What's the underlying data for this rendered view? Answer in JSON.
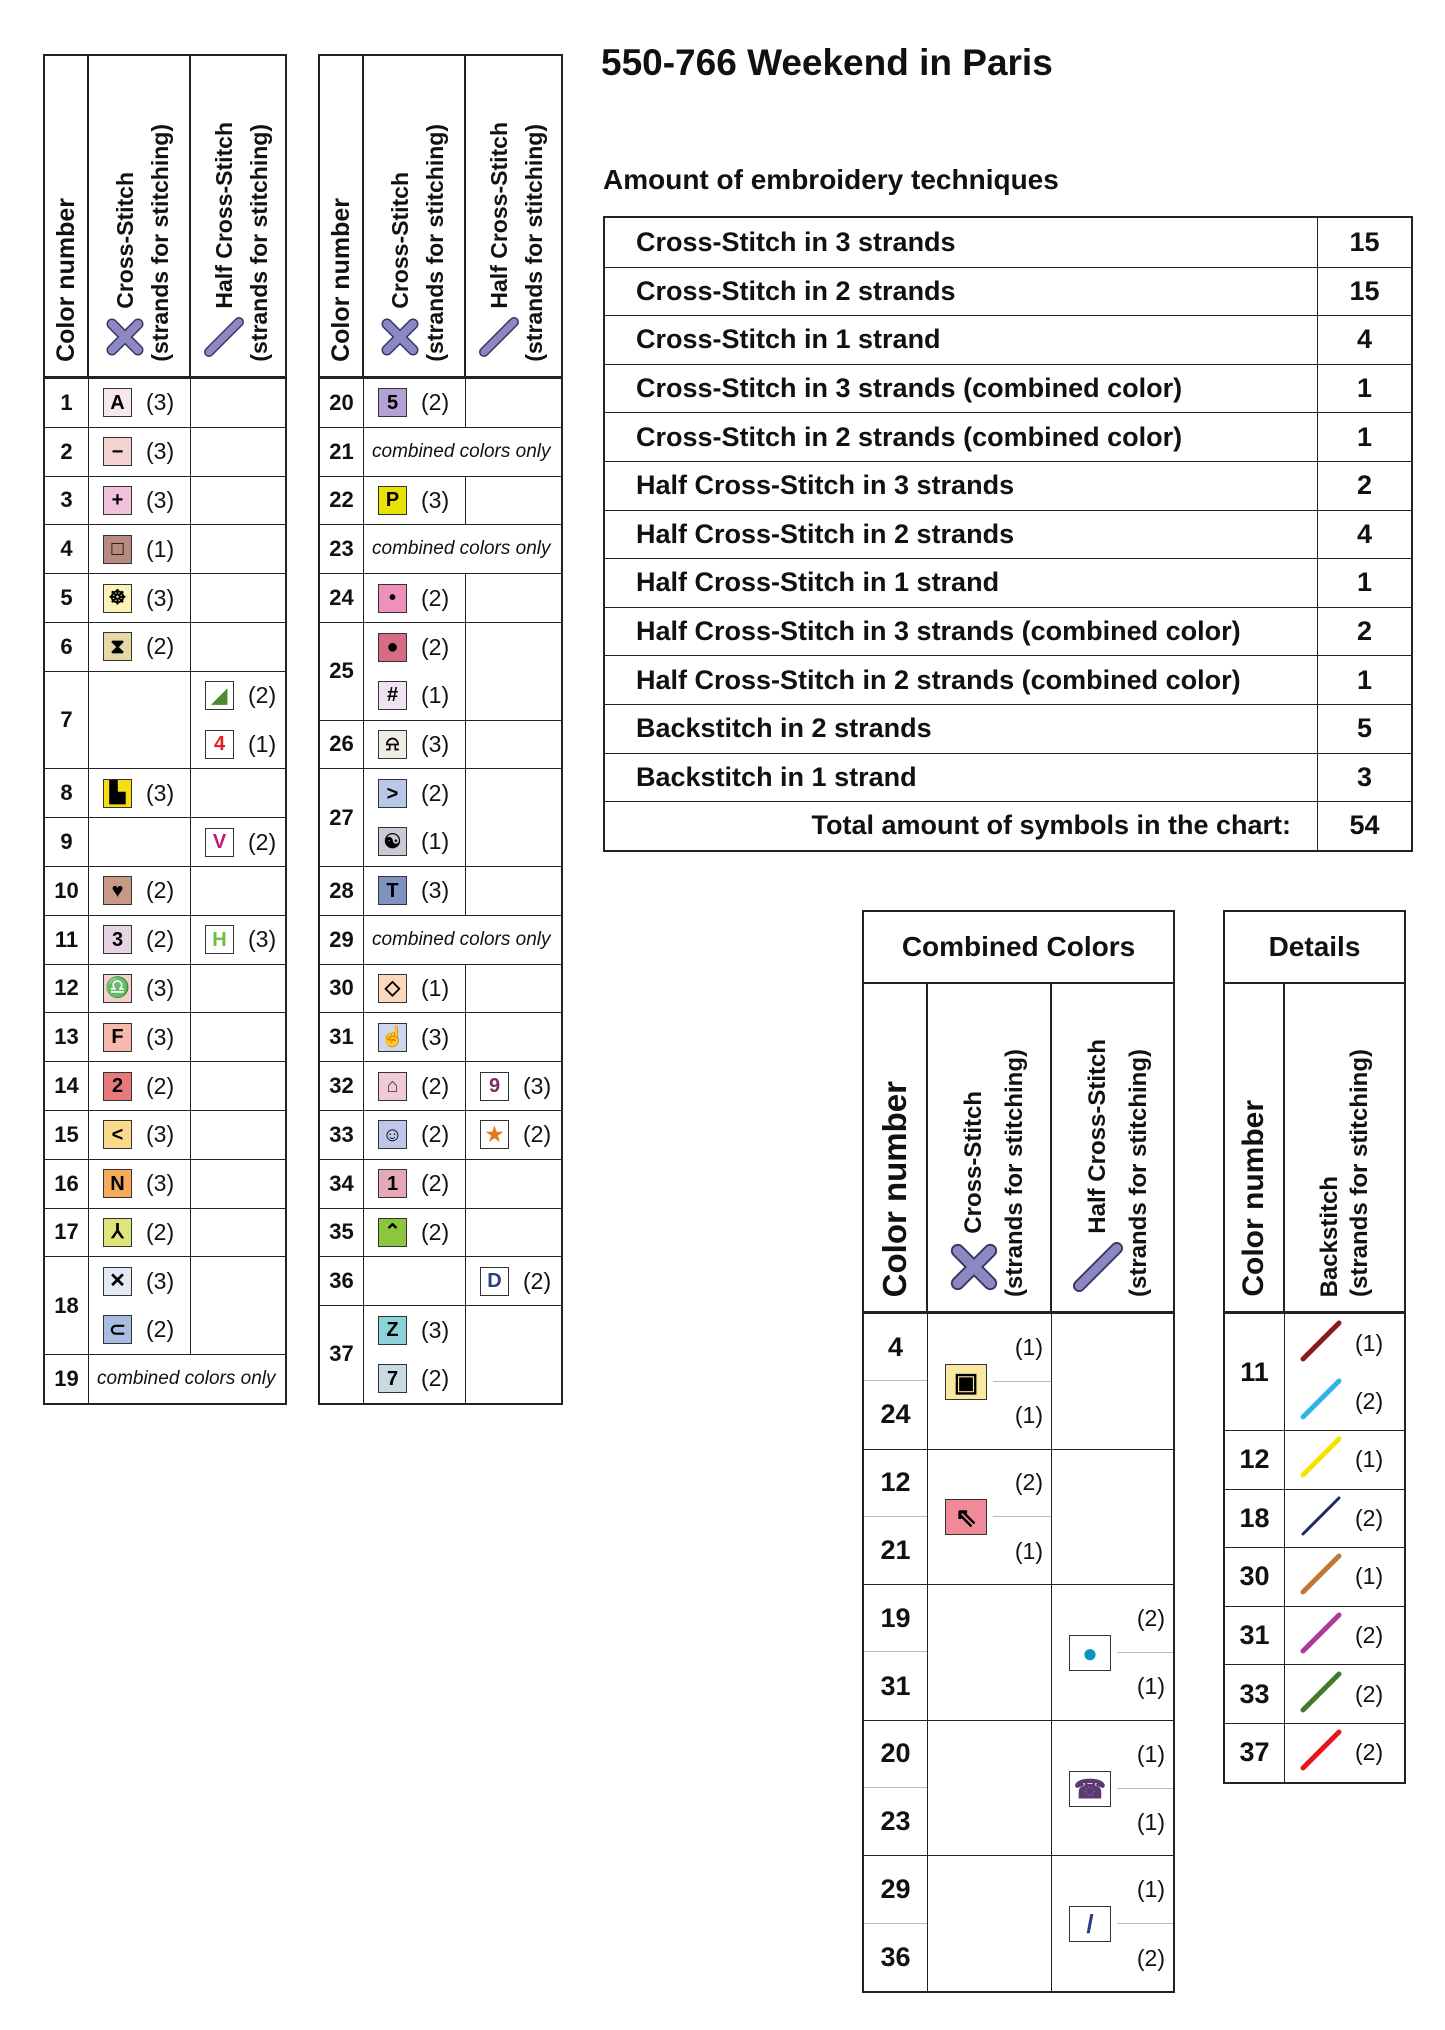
{
  "title": "550-766 Weekend in Paris",
  "amount": {
    "heading": "Amount of embroidery techniques",
    "rows": [
      {
        "label": "Cross-Stitch in 3 strands",
        "value": "15"
      },
      {
        "label": "Cross-Stitch in 2 strands",
        "value": "15"
      },
      {
        "label": "Cross-Stitch in 1 strand",
        "value": "4"
      },
      {
        "label": "Cross-Stitch in 3 strands (combined color)",
        "value": "1"
      },
      {
        "label": "Cross-Stitch in 2 strands (combined color)",
        "value": "1"
      },
      {
        "label": "Half Cross-Stitch in 3 strands",
        "value": "2"
      },
      {
        "label": "Half Cross-Stitch in 2 strands",
        "value": "4"
      },
      {
        "label": "Half Cross-Stitch in 1 strand",
        "value": "1"
      },
      {
        "label": "Half Cross-Stitch in 3 strands (combined color)",
        "value": "2"
      },
      {
        "label": "Half Cross-Stitch in 2 strands (combined color)",
        "value": "1"
      },
      {
        "label": "Backstitch in 2 strands",
        "value": "5"
      },
      {
        "label": "Backstitch in 1 strand",
        "value": "3"
      }
    ],
    "total": {
      "label": "Total amount of symbols in the chart:",
      "value": "54"
    }
  },
  "headers": {
    "color_number": "Color number",
    "cross_stitch": "Cross-Stitch",
    "half_cross_stitch": "Half Cross-Stitch",
    "backstitch": "Backstitch",
    "strands": "(strands for stitching)",
    "stitch_icon_color": "#8d87c4"
  },
  "key_tables": [
    [
      {
        "num": "1",
        "cross": [
          {
            "sym": "A",
            "bg": "#f7e8ef",
            "fg": "#000",
            "strands": "(3)"
          }
        ],
        "half": []
      },
      {
        "num": "2",
        "cross": [
          {
            "sym": "−",
            "bg": "#f2d3d0",
            "fg": "#000",
            "strands": "(3)"
          }
        ],
        "half": []
      },
      {
        "num": "3",
        "cross": [
          {
            "sym": "+",
            "bg": "#f2c2dc",
            "fg": "#000",
            "strands": "(3)"
          }
        ],
        "half": []
      },
      {
        "num": "4",
        "cross": [
          {
            "sym": "□",
            "bg": "#b88a80",
            "fg": "#000",
            "strands": "(1)"
          }
        ],
        "half": []
      },
      {
        "num": "5",
        "cross": [
          {
            "sym": "☸",
            "bg": "#fbf3b8",
            "fg": "#000",
            "strands": "(3)"
          }
        ],
        "half": []
      },
      {
        "num": "6",
        "cross": [
          {
            "sym": "⧗",
            "bg": "#e6d9a6",
            "fg": "#000",
            "strands": "(2)"
          }
        ],
        "half": []
      },
      {
        "num": "7",
        "cross": [],
        "half": [
          {
            "sym": "◢",
            "bg": "#ffffff",
            "fg": "#4b8a2e",
            "strands": "(2)"
          },
          {
            "sym": "4",
            "bg": "#ffffff",
            "fg": "#e02020",
            "strands": "(1)"
          }
        ]
      },
      {
        "num": "8",
        "cross": [
          {
            "sym": "▙",
            "bg": "#f6dc10",
            "fg": "#000",
            "strands": "(3)"
          }
        ],
        "half": []
      },
      {
        "num": "9",
        "cross": [],
        "half": [
          {
            "sym": "V",
            "bg": "#ffffff",
            "fg": "#c0187f",
            "strands": "(2)"
          }
        ]
      },
      {
        "num": "10",
        "cross": [
          {
            "sym": "♥",
            "bg": "#c79a88",
            "fg": "#000",
            "strands": "(2)"
          }
        ],
        "half": []
      },
      {
        "num": "11",
        "cross": [
          {
            "sym": "3",
            "bg": "#e6d3e3",
            "fg": "#000",
            "strands": "(2)"
          }
        ],
        "half": [
          {
            "sym": "H",
            "bg": "#ffffff",
            "fg": "#6bbf3a",
            "strands": "(3)"
          }
        ]
      },
      {
        "num": "12",
        "cross": [
          {
            "sym": "♎",
            "bg": "#f6cfcc",
            "fg": "#000",
            "strands": "(3)"
          }
        ],
        "half": []
      },
      {
        "num": "13",
        "cross": [
          {
            "sym": "F",
            "bg": "#f5b9ad",
            "fg": "#000",
            "strands": "(3)"
          }
        ],
        "half": []
      },
      {
        "num": "14",
        "cross": [
          {
            "sym": "2",
            "bg": "#e67a7a",
            "fg": "#000",
            "strands": "(2)"
          }
        ],
        "half": []
      },
      {
        "num": "15",
        "cross": [
          {
            "sym": "<",
            "bg": "#fbd98c",
            "fg": "#000",
            "strands": "(3)"
          }
        ],
        "half": []
      },
      {
        "num": "16",
        "cross": [
          {
            "sym": "N",
            "bg": "#f6aa5a",
            "fg": "#000",
            "strands": "(3)"
          }
        ],
        "half": []
      },
      {
        "num": "17",
        "cross": [
          {
            "sym": "⅄",
            "bg": "#dfe57a",
            "fg": "#000",
            "strands": "(2)"
          }
        ],
        "half": []
      },
      {
        "num": "18",
        "cross": [
          {
            "sym": "✕",
            "bg": "#e3e9f5",
            "fg": "#000",
            "strands": "(3)"
          },
          {
            "sym": "⊂",
            "bg": "#a9bde0",
            "fg": "#000",
            "strands": "(2)"
          }
        ],
        "half": []
      },
      {
        "num": "19",
        "note": "combined colors only"
      }
    ],
    [
      {
        "num": "20",
        "cross": [
          {
            "sym": "5",
            "bg": "#b3a0d4",
            "fg": "#000",
            "strands": "(2)"
          }
        ],
        "half": []
      },
      {
        "num": "21",
        "note": "combined colors only"
      },
      {
        "num": "22",
        "cross": [
          {
            "sym": "P",
            "bg": "#e9e200",
            "fg": "#000",
            "strands": "(3)"
          }
        ],
        "half": []
      },
      {
        "num": "23",
        "note": "combined colors only"
      },
      {
        "num": "24",
        "cross": [
          {
            "sym": "•",
            "bg": "#ee8fbd",
            "fg": "#000",
            "strands": "(2)"
          }
        ],
        "half": []
      },
      {
        "num": "25",
        "cross": [
          {
            "sym": "●",
            "bg": "#d66d82",
            "fg": "#000",
            "strands": "(2)"
          },
          {
            "sym": "#",
            "bg": "#efe3f2",
            "fg": "#000",
            "strands": "(1)"
          }
        ],
        "half": []
      },
      {
        "num": "26",
        "cross": [
          {
            "sym": "⍾",
            "bg": "#f0ebe5",
            "fg": "#000",
            "strands": "(3)"
          }
        ],
        "half": []
      },
      {
        "num": "27",
        "cross": [
          {
            "sym": ">",
            "bg": "#b9c8e6",
            "fg": "#000",
            "strands": "(2)"
          },
          {
            "sym": "☯",
            "bg": "#c9cad8",
            "fg": "#000",
            "strands": "(1)"
          }
        ],
        "half": []
      },
      {
        "num": "28",
        "cross": [
          {
            "sym": "T",
            "bg": "#7f92c0",
            "fg": "#000",
            "strands": "(3)"
          }
        ],
        "half": []
      },
      {
        "num": "29",
        "note": "combined colors only"
      },
      {
        "num": "30",
        "cross": [
          {
            "sym": "◇",
            "bg": "#fbd9bd",
            "fg": "#000",
            "strands": "(1)"
          }
        ],
        "half": []
      },
      {
        "num": "31",
        "cross": [
          {
            "sym": "☝",
            "bg": "#cfd6ef",
            "fg": "#333",
            "strands": "(3)"
          }
        ],
        "half": []
      },
      {
        "num": "32",
        "cross": [
          {
            "sym": "⌂",
            "bg": "#f0cbd5",
            "fg": "#333",
            "strands": "(2)"
          }
        ],
        "half": [
          {
            "sym": "9",
            "bg": "#ffffff",
            "fg": "#7a2a66",
            "strands": "(3)"
          }
        ]
      },
      {
        "num": "33",
        "cross": [
          {
            "sym": "☺",
            "bg": "#c0c6ea",
            "fg": "#000",
            "strands": "(2)"
          }
        ],
        "half": [
          {
            "sym": "★",
            "bg": "#ffffff",
            "fg": "#e07d1a",
            "strands": "(2)"
          }
        ]
      },
      {
        "num": "34",
        "cross": [
          {
            "sym": "1",
            "bg": "#e4a8b8",
            "fg": "#000",
            "strands": "(2)"
          }
        ],
        "half": []
      },
      {
        "num": "35",
        "cross": [
          {
            "sym": "⌃",
            "bg": "#8cc63f",
            "fg": "#000",
            "strands": "(2)"
          }
        ],
        "half": []
      },
      {
        "num": "36",
        "cross": [],
        "half": [
          {
            "sym": "D",
            "bg": "#ffffff",
            "fg": "#2a3a8c",
            "strands": "(2)"
          }
        ]
      },
      {
        "num": "37",
        "cross": [
          {
            "sym": "Z",
            "bg": "#8bd3d9",
            "fg": "#000",
            "strands": "(3)"
          },
          {
            "sym": "7",
            "bg": "#c9dbe2",
            "fg": "#000",
            "strands": "(2)"
          }
        ],
        "half": []
      }
    ]
  ],
  "combined": {
    "title": "Combined Colors",
    "pairs": [
      {
        "nums": [
          "4",
          "24"
        ],
        "col": "cross",
        "sym": "▣",
        "icon": "floppy-disk-icon",
        "bg": "#fae8a0",
        "fg": "#000",
        "strands": [
          "(1)",
          "(1)"
        ]
      },
      {
        "nums": [
          "12",
          "21"
        ],
        "col": "cross",
        "sym": "⇖",
        "icon": "arrow-up-left-icon",
        "bg": "#f08a9a",
        "fg": "#000",
        "strands": [
          "(2)",
          "(1)"
        ]
      },
      {
        "nums": [
          "19",
          "31"
        ],
        "col": "half",
        "sym": "●",
        "icon": "circle-icon",
        "bg": "#ffffff",
        "fg": "#0a92c0",
        "strands": [
          "(2)",
          "(1)"
        ]
      },
      {
        "nums": [
          "20",
          "23"
        ],
        "col": "half",
        "sym": "☎",
        "icon": "telephone-icon",
        "bg": "#ffffff",
        "fg": "#5a3a70",
        "strands": [
          "(1)",
          "(1)"
        ]
      },
      {
        "nums": [
          "29",
          "36"
        ],
        "col": "half",
        "sym": "/",
        "icon": "slash-icon",
        "bg": "#ffffff",
        "fg": "#2a3a8c",
        "strands": [
          "(1)",
          "(2)"
        ]
      }
    ]
  },
  "details": {
    "title": "Details",
    "rows": [
      {
        "num": "11",
        "lines": [
          {
            "color": "#8b1a1a",
            "strands": "(1)"
          },
          {
            "color": "#33b5e5",
            "strands": "(2)"
          }
        ]
      },
      {
        "num": "12",
        "lines": [
          {
            "color": "#f2e600",
            "strands": "(1)"
          }
        ]
      },
      {
        "num": "18",
        "lines": [
          {
            "color": "#1a2a6c",
            "strands": "(2)"
          }
        ]
      },
      {
        "num": "30",
        "lines": [
          {
            "color": "#c07838",
            "strands": "(1)"
          }
        ]
      },
      {
        "num": "31",
        "lines": [
          {
            "color": "#b0389a",
            "strands": "(2)"
          }
        ]
      },
      {
        "num": "33",
        "lines": [
          {
            "color": "#3f7a2a",
            "strands": "(2)"
          }
        ]
      },
      {
        "num": "37",
        "lines": [
          {
            "color": "#e8141e",
            "strands": "(2)"
          }
        ]
      }
    ]
  }
}
